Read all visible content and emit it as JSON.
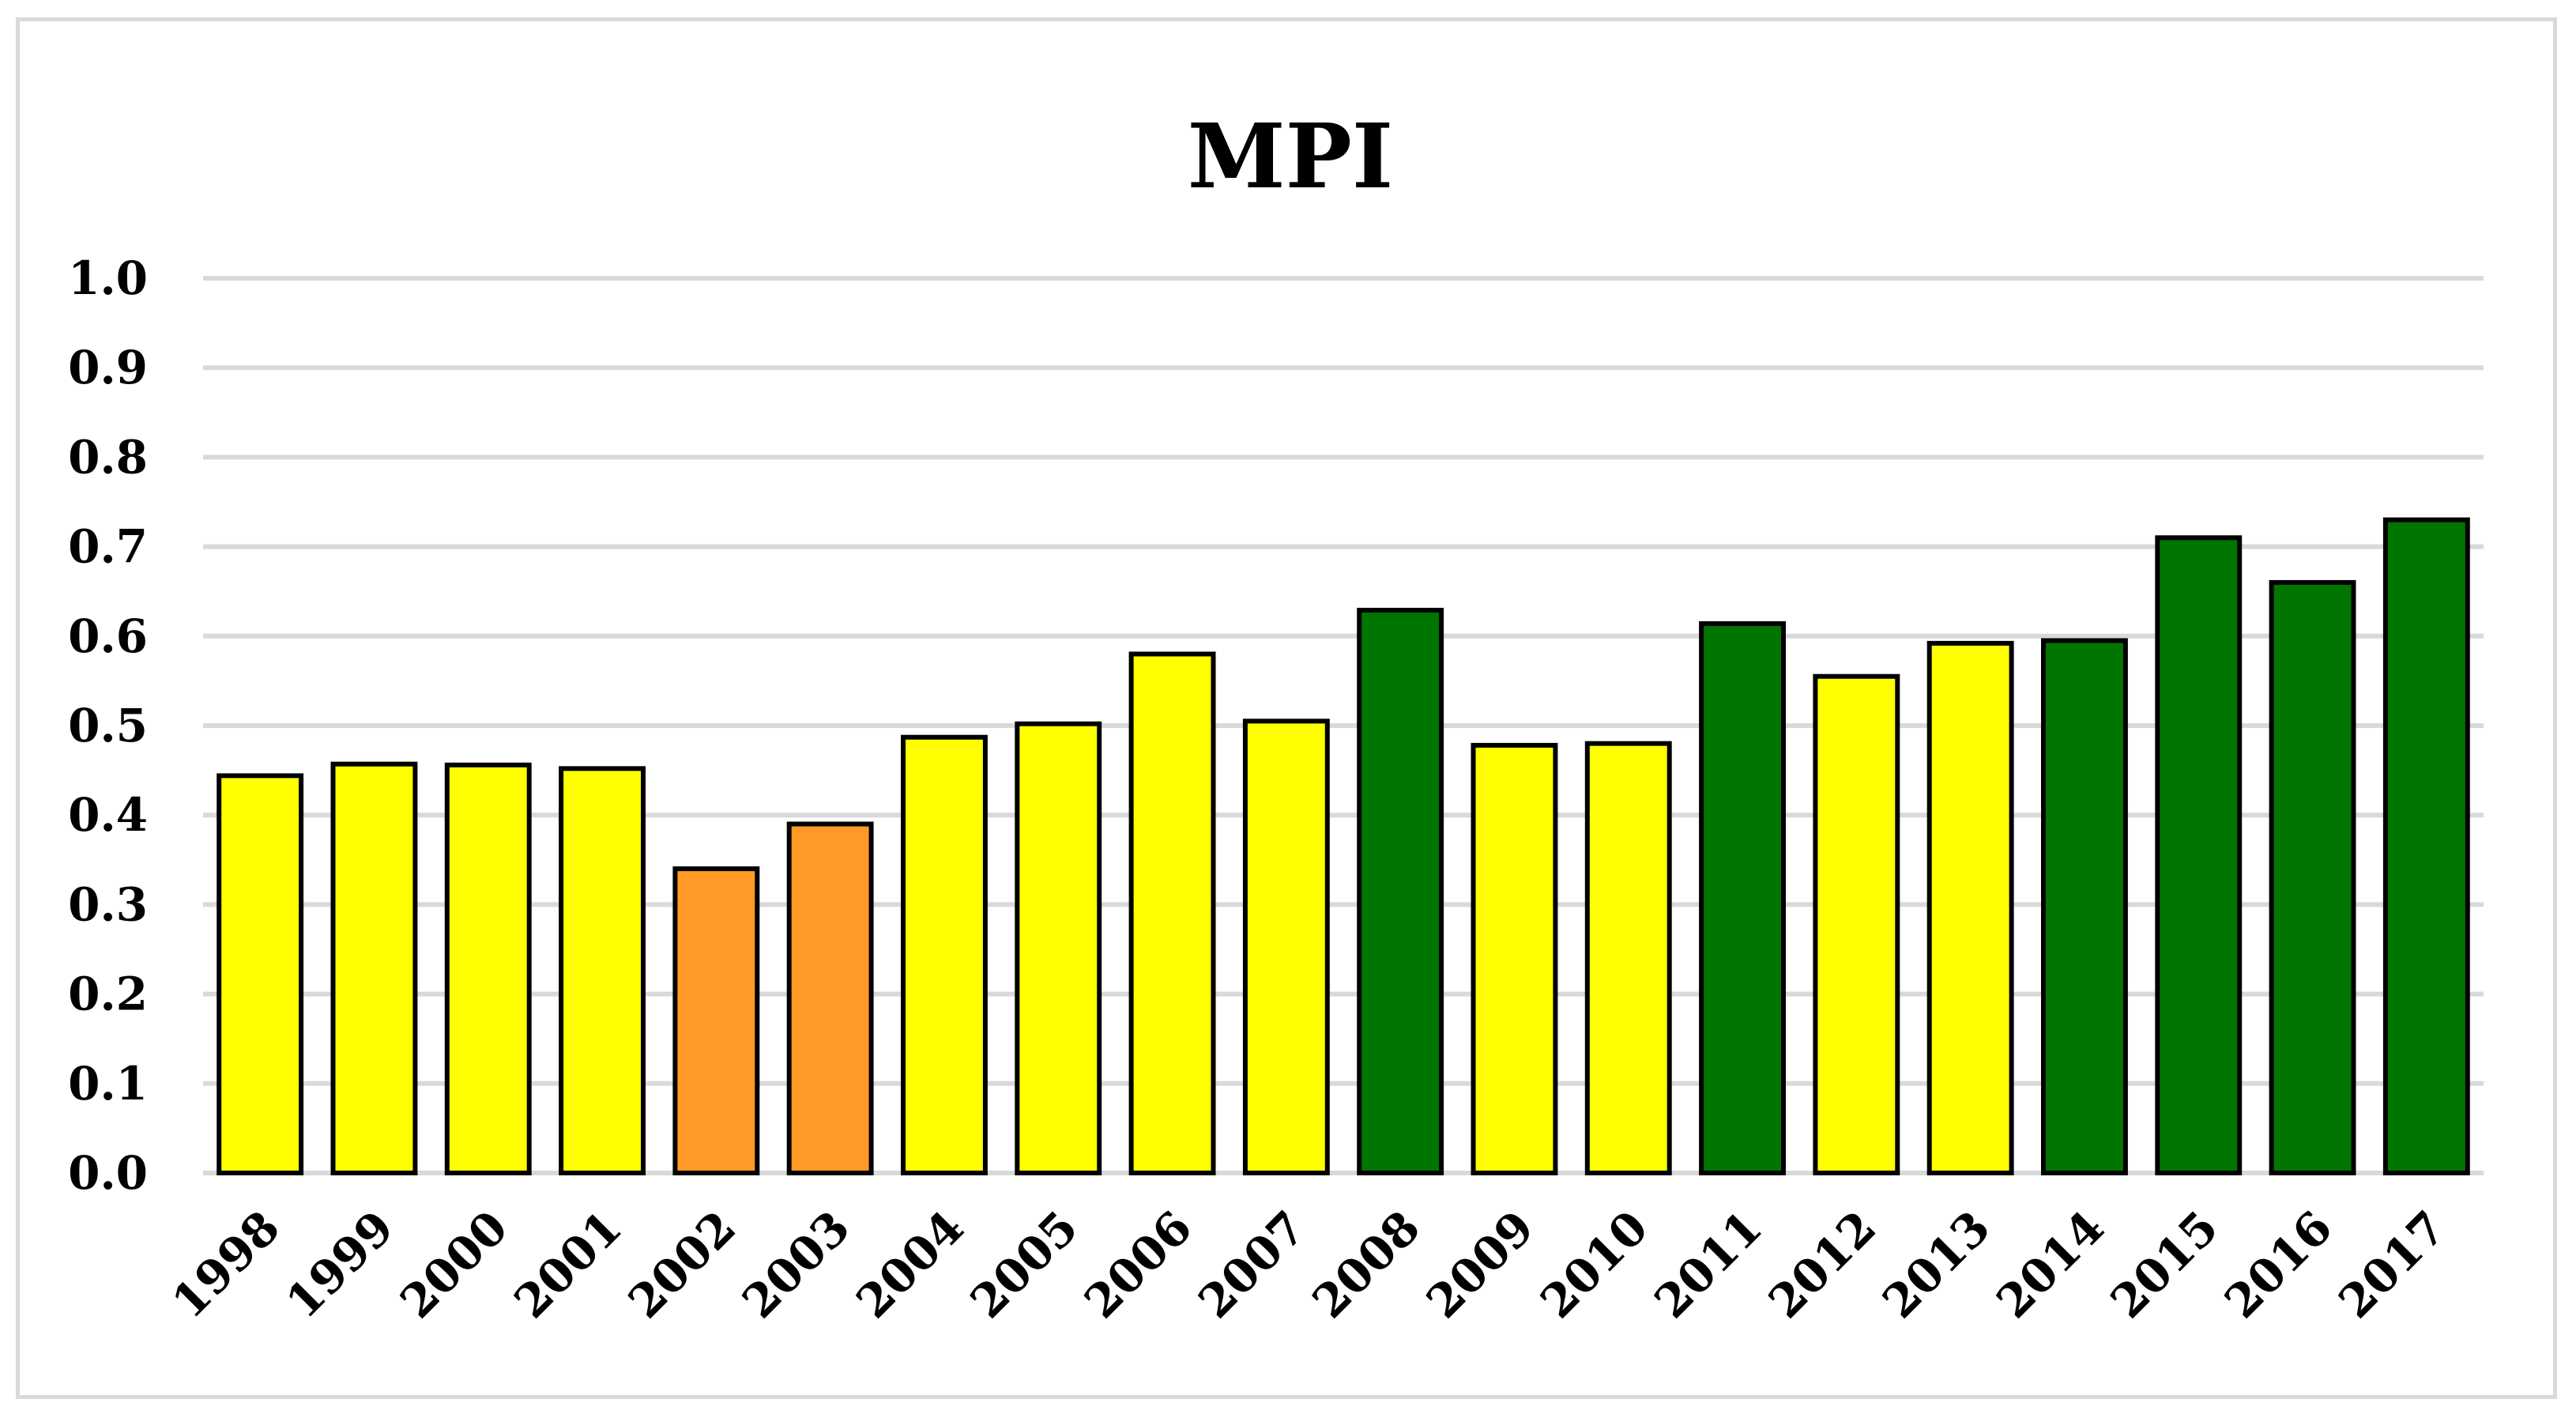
{
  "chart_data": {
    "type": "bar",
    "title": "MPI",
    "xlabel": "",
    "ylabel": "",
    "ylim": [
      0,
      1.0
    ],
    "yticks": [
      "0.0",
      "0.1",
      "0.2",
      "0.3",
      "0.4",
      "0.5",
      "0.6",
      "0.7",
      "0.8",
      "0.9",
      "1.0"
    ],
    "grid": true,
    "legend": "none",
    "categories": [
      "1998",
      "1999",
      "2000",
      "2001",
      "2002",
      "2003",
      "2004",
      "2005",
      "2006",
      "2007",
      "2008",
      "2009",
      "2010",
      "2011",
      "2012",
      "2013",
      "2014",
      "2015",
      "2016",
      "2017"
    ],
    "values": [
      0.444,
      0.457,
      0.456,
      0.452,
      0.34,
      0.39,
      0.487,
      0.502,
      0.58,
      0.505,
      0.629,
      0.478,
      0.48,
      0.614,
      0.555,
      0.592,
      0.595,
      0.71,
      0.66,
      0.73
    ],
    "bar_colors": [
      "#ffff00",
      "#ffff00",
      "#ffff00",
      "#ffff00",
      "#ff9a26",
      "#ff9a26",
      "#ffff00",
      "#ffff00",
      "#ffff00",
      "#ffff00",
      "#007500",
      "#ffff00",
      "#ffff00",
      "#007500",
      "#ffff00",
      "#ffff00",
      "#007500",
      "#007500",
      "#007500",
      "#007500"
    ]
  }
}
